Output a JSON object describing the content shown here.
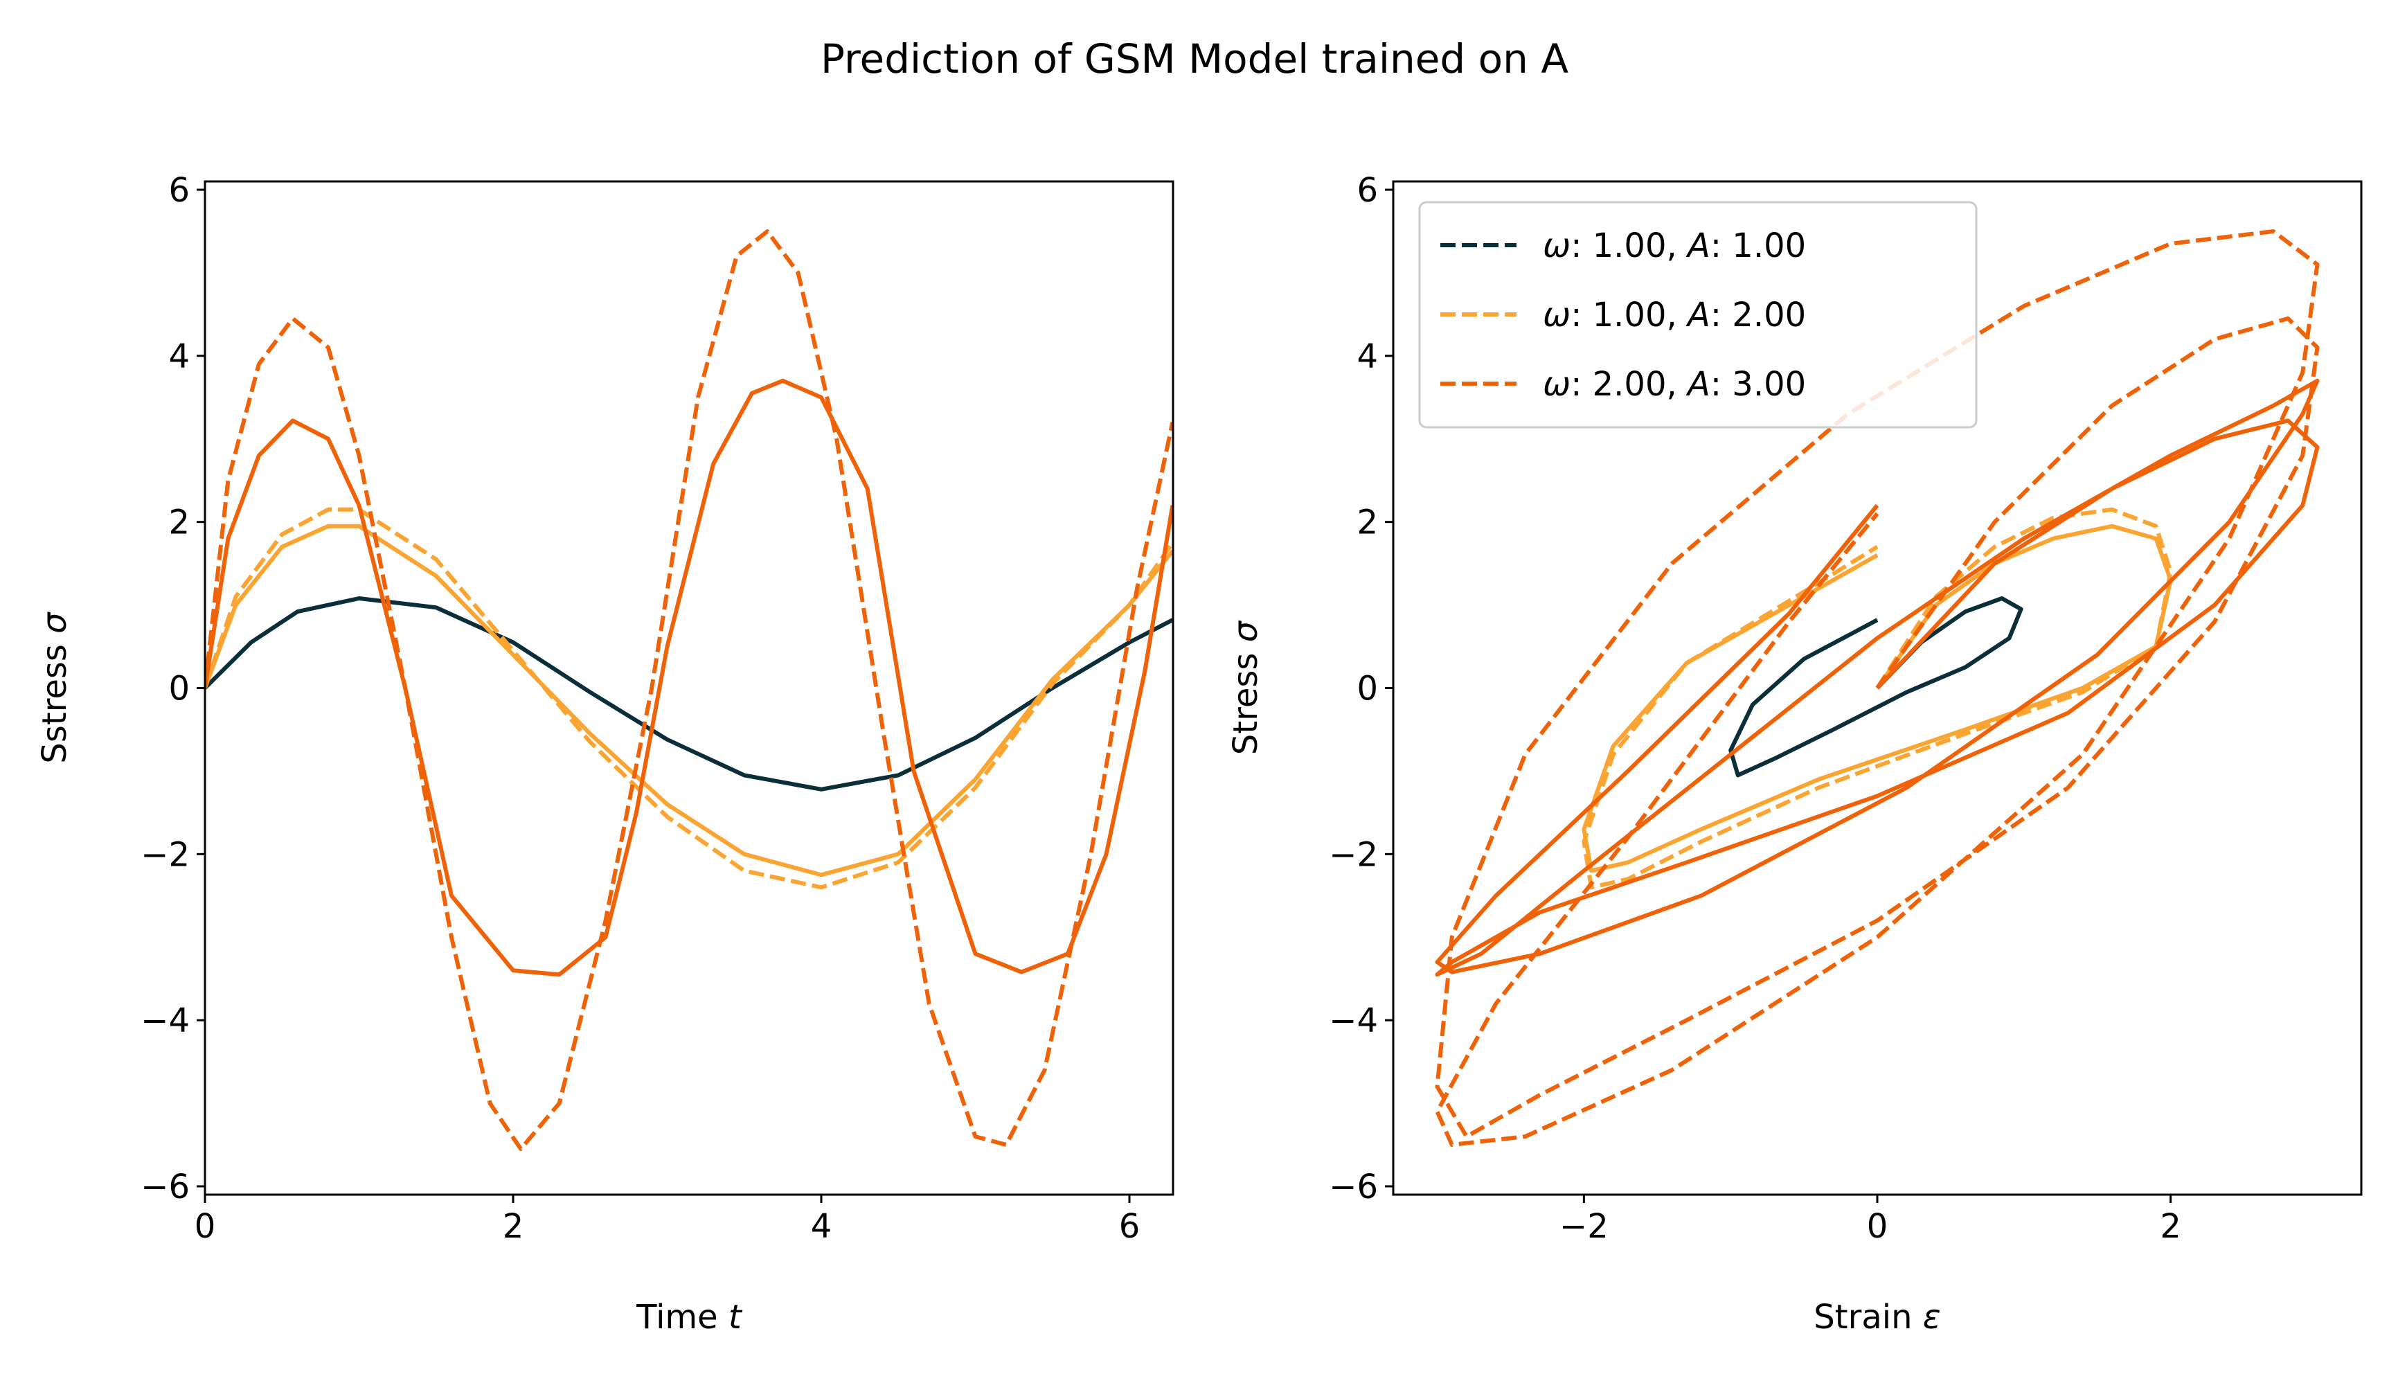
{
  "figure_title": "Prediction of GSM Model trained on A",
  "colors": {
    "omega1_A1": "#0a2e3a",
    "omega1_A2": "#fba431",
    "omega2_A3": "#f06208"
  },
  "chart_data": [
    {
      "type": "line",
      "panel": "left",
      "xlabel": "Time t",
      "ylabel": "Sstress σ",
      "xlim": [
        0,
        6.2832
      ],
      "ylim": [
        -6.1,
        6.1
      ],
      "xticks": [
        0,
        2,
        4,
        6
      ],
      "yticks": [
        -6,
        -4,
        -2,
        0,
        2,
        4,
        6
      ],
      "grid": false,
      "series": [
        {
          "color": "#0a2e3a",
          "style": "solid",
          "x": [
            0,
            0.3,
            0.6,
            1.0,
            1.5,
            2.0,
            2.5,
            3.0,
            3.5,
            4.0,
            4.5,
            5.0,
            5.5,
            6.0,
            6.28
          ],
          "y": [
            0,
            0.55,
            0.92,
            1.08,
            0.97,
            0.55,
            -0.05,
            -0.62,
            -1.05,
            -1.22,
            -1.05,
            -0.6,
            0.0,
            0.55,
            0.82
          ]
        },
        {
          "color": "#fba431",
          "style": "solid",
          "x": [
            0,
            0.2,
            0.5,
            0.8,
            1.0,
            1.5,
            2.0,
            2.5,
            3.0,
            3.5,
            4.0,
            4.5,
            5.0,
            5.5,
            6.0,
            6.28
          ],
          "y": [
            0,
            1.0,
            1.7,
            1.95,
            1.95,
            1.35,
            0.4,
            -0.55,
            -1.4,
            -2.0,
            -2.25,
            -2.0,
            -1.1,
            0.1,
            1.0,
            1.65
          ]
        },
        {
          "color": "#fba431",
          "style": "dashed",
          "x": [
            0,
            0.2,
            0.5,
            0.8,
            1.0,
            1.5,
            2.0,
            2.5,
            3.0,
            3.5,
            4.0,
            4.5,
            5.0,
            5.5,
            6.0,
            6.28
          ],
          "y": [
            0,
            1.1,
            1.85,
            2.15,
            2.15,
            1.55,
            0.45,
            -0.65,
            -1.55,
            -2.2,
            -2.4,
            -2.1,
            -1.2,
            0.05,
            1.0,
            1.75
          ]
        },
        {
          "color": "#f06208",
          "style": "solid",
          "x": [
            0,
            0.15,
            0.35,
            0.57,
            0.8,
            1.0,
            1.3,
            1.6,
            2.0,
            2.3,
            2.6,
            2.8,
            3.0,
            3.3,
            3.55,
            3.75,
            4.0,
            4.3,
            4.6,
            5.0,
            5.3,
            5.6,
            5.85,
            6.1,
            6.28
          ],
          "y": [
            0,
            1.8,
            2.8,
            3.22,
            3.0,
            2.2,
            0.0,
            -2.5,
            -3.4,
            -3.45,
            -3.0,
            -1.5,
            0.5,
            2.7,
            3.55,
            3.7,
            3.5,
            2.4,
            -1.0,
            -3.2,
            -3.42,
            -3.2,
            -2.0,
            0.2,
            2.2
          ]
        },
        {
          "color": "#f06208",
          "style": "dashed",
          "x": [
            0,
            0.15,
            0.35,
            0.57,
            0.8,
            1.0,
            1.3,
            1.6,
            1.85,
            2.05,
            2.3,
            2.6,
            2.9,
            3.2,
            3.45,
            3.65,
            3.85,
            4.1,
            4.4,
            4.7,
            5.0,
            5.2,
            5.45,
            5.75,
            6.05,
            6.28
          ],
          "y": [
            0,
            2.5,
            3.9,
            4.45,
            4.1,
            2.8,
            0.0,
            -3.0,
            -5.0,
            -5.55,
            -5.0,
            -2.8,
            0.0,
            3.5,
            5.2,
            5.5,
            5.0,
            3.0,
            -0.5,
            -3.8,
            -5.4,
            -5.5,
            -4.6,
            -2.0,
            1.2,
            3.2
          ]
        }
      ]
    },
    {
      "type": "line",
      "panel": "right",
      "xlabel": "Strain ε",
      "ylabel": "Stress σ",
      "xlim": [
        -3.3,
        3.3
      ],
      "ylim": [
        -6.1,
        6.1
      ],
      "xticks": [
        -2,
        0,
        2
      ],
      "yticks": [
        -6,
        -4,
        -2,
        0,
        2,
        4,
        6
      ],
      "grid": false,
      "legend_position": "upper-left",
      "legend": [
        {
          "label": "ω: 1.00, A: 1.00",
          "color": "#0a2e3a"
        },
        {
          "label": "ω: 1.00, A: 2.00",
          "color": "#fba431"
        },
        {
          "label": "ω: 2.00, A: 3.00",
          "color": "#f06208"
        }
      ],
      "series": [
        {
          "color": "#0a2e3a",
          "style": "solid",
          "x": [
            0,
            0.3,
            0.6,
            0.85,
            0.98,
            0.9,
            0.6,
            0.2,
            -0.3,
            -0.7,
            -0.95,
            -1.0,
            -0.85,
            -0.5,
            0.0
          ],
          "y": [
            0,
            0.55,
            0.92,
            1.08,
            0.95,
            0.6,
            0.25,
            -0.05,
            -0.5,
            -0.85,
            -1.05,
            -0.75,
            -0.2,
            0.35,
            0.82
          ]
        },
        {
          "color": "#fba431",
          "style": "solid",
          "x": [
            0,
            0.4,
            0.8,
            1.2,
            1.6,
            1.9,
            2.0,
            1.9,
            1.4,
            0.6,
            -0.4,
            -1.2,
            -1.7,
            -1.95,
            -2.0,
            -1.8,
            -1.3,
            -0.6,
            0.0
          ],
          "y": [
            0,
            1.0,
            1.5,
            1.8,
            1.95,
            1.8,
            1.3,
            0.5,
            0.0,
            -0.5,
            -1.1,
            -1.7,
            -2.1,
            -2.2,
            -1.7,
            -0.7,
            0.3,
            1.0,
            1.6
          ]
        },
        {
          "color": "#fba431",
          "style": "dashed",
          "x": [
            0,
            0.4,
            0.8,
            1.2,
            1.6,
            1.9,
            2.0,
            1.9,
            1.4,
            0.6,
            -0.4,
            -1.2,
            -1.7,
            -1.95,
            -2.0,
            -1.8,
            -1.3,
            -0.6,
            0.0
          ],
          "y": [
            0,
            1.1,
            1.7,
            2.05,
            2.15,
            1.95,
            1.4,
            0.5,
            -0.05,
            -0.55,
            -1.2,
            -1.85,
            -2.3,
            -2.4,
            -1.85,
            -0.8,
            0.3,
            1.05,
            1.7
          ]
        },
        {
          "color": "#f06208",
          "style": "solid",
          "x": [
            0,
            0.8,
            1.6,
            2.3,
            2.8,
            3.0,
            2.9,
            2.3,
            1.3,
            0.0,
            -1.3,
            -2.3,
            -2.9,
            -3.0,
            -2.7,
            -2.0,
            -1.0,
            0.0,
            1.0,
            2.0,
            2.7,
            3.0,
            2.9,
            2.4,
            1.5,
            0.2,
            -1.2,
            -2.3,
            -2.9,
            -3.0,
            -2.6,
            -1.7,
            -0.6,
            0.0
          ],
          "y": [
            0,
            1.5,
            2.4,
            3.0,
            3.22,
            2.9,
            2.2,
            1.0,
            -0.3,
            -1.3,
            -2.1,
            -2.7,
            -3.3,
            -3.45,
            -3.2,
            -2.2,
            -0.8,
            0.6,
            1.8,
            2.8,
            3.4,
            3.7,
            3.3,
            2.0,
            0.4,
            -1.2,
            -2.5,
            -3.2,
            -3.42,
            -3.3,
            -2.5,
            -1.0,
            0.9,
            2.2
          ]
        },
        {
          "color": "#f06208",
          "style": "dashed",
          "x": [
            0,
            0.8,
            1.6,
            2.3,
            2.8,
            3.0,
            2.9,
            2.3,
            1.3,
            0.0,
            -1.3,
            -2.3,
            -2.8,
            -3.0,
            -2.9,
            -2.4,
            -1.4,
            -0.2,
            1.0,
            2.0,
            2.7,
            3.0,
            2.9,
            2.4,
            1.4,
            0.0,
            -1.4,
            -2.4,
            -2.9,
            -3.0,
            -2.6,
            -1.7,
            -0.6,
            0.0
          ],
          "y": [
            0,
            2.0,
            3.4,
            4.2,
            4.45,
            4.1,
            2.8,
            0.8,
            -1.2,
            -2.8,
            -4.0,
            -4.9,
            -5.4,
            -4.8,
            -3.0,
            -0.8,
            1.5,
            3.3,
            4.6,
            5.35,
            5.5,
            5.1,
            3.8,
            1.8,
            -0.8,
            -3.0,
            -4.6,
            -5.4,
            -5.5,
            -5.1,
            -3.8,
            -1.8,
            0.8,
            2.1
          ]
        }
      ]
    }
  ]
}
